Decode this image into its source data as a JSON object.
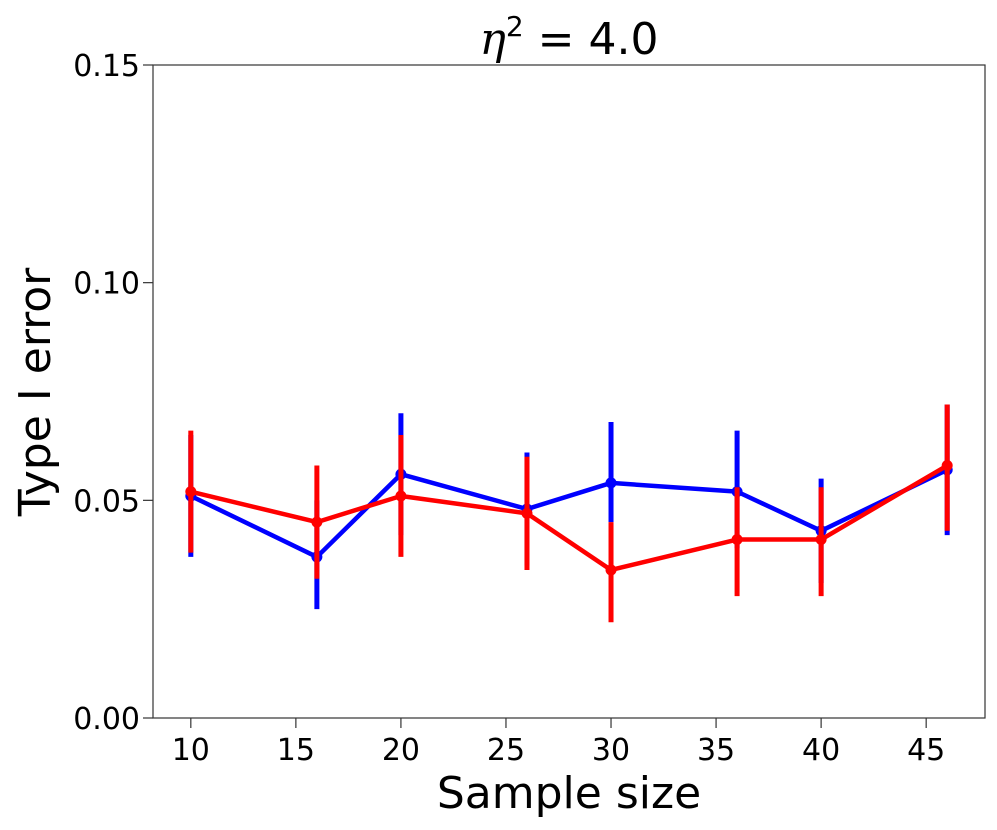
{
  "chart_data": {
    "type": "line",
    "title_symbol": "η",
    "title_exponent": "2",
    "title_rest": " = 4.0",
    "xlabel": "Sample size",
    "ylabel": "Type I error",
    "xlim": [
      8.2,
      47.8
    ],
    "ylim": [
      0.0,
      0.15
    ],
    "xticks": [
      10,
      15,
      20,
      25,
      30,
      35,
      40,
      45
    ],
    "yticks": [
      0.0,
      0.05,
      0.1,
      0.15
    ],
    "ytick_labels": [
      "0.00",
      "0.05",
      "0.10",
      "0.15"
    ],
    "grid": false,
    "x": [
      10,
      16,
      20,
      26,
      30,
      36,
      40,
      46
    ],
    "series": [
      {
        "name": "blue",
        "color": "#0000ff",
        "values": [
          0.051,
          0.037,
          0.056,
          0.048,
          0.054,
          0.052,
          0.043,
          0.057
        ],
        "err_low": [
          0.037,
          0.025,
          0.042,
          0.035,
          0.045,
          0.039,
          0.031,
          0.042
        ],
        "err_high": [
          0.065,
          0.05,
          0.07,
          0.061,
          0.068,
          0.066,
          0.055,
          0.072
        ]
      },
      {
        "name": "red",
        "color": "#ff0000",
        "values": [
          0.052,
          0.045,
          0.051,
          0.047,
          0.034,
          0.041,
          0.041,
          0.058
        ],
        "err_low": [
          0.038,
          0.032,
          0.037,
          0.034,
          0.022,
          0.028,
          0.028,
          0.043
        ],
        "err_high": [
          0.066,
          0.058,
          0.065,
          0.06,
          0.045,
          0.053,
          0.053,
          0.072
        ]
      }
    ]
  }
}
